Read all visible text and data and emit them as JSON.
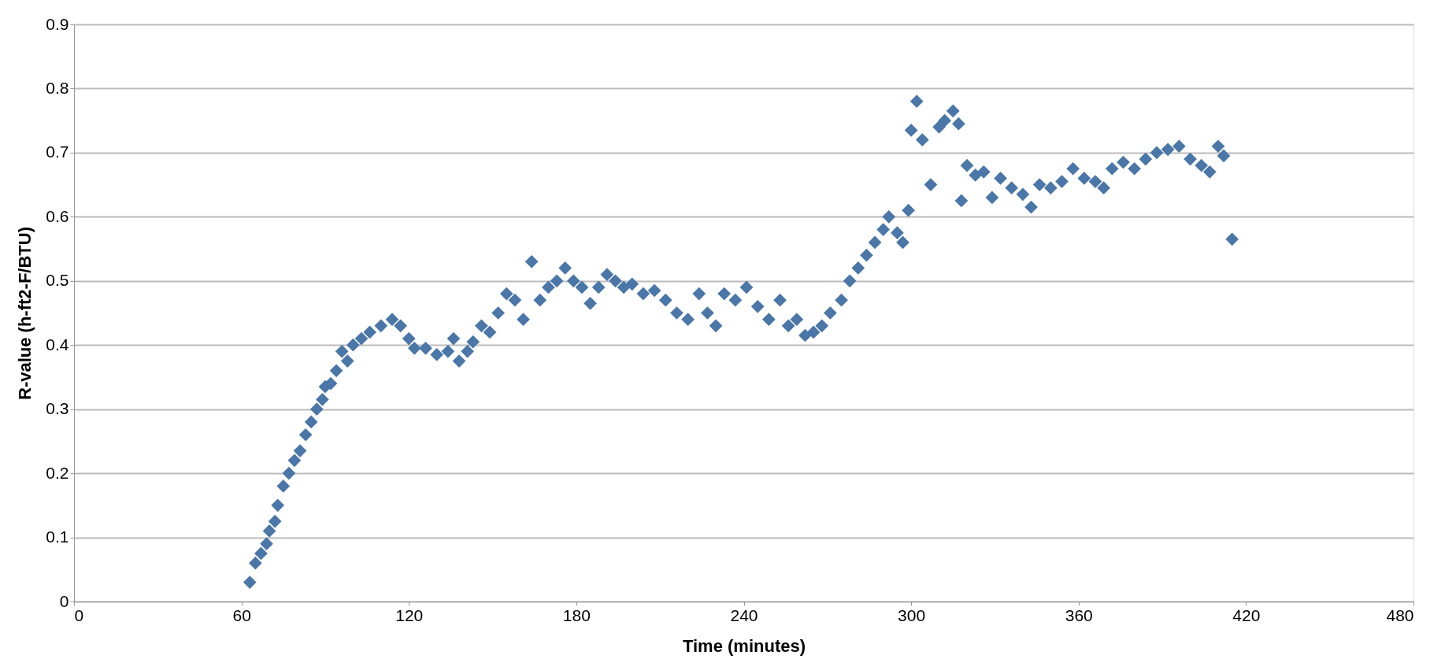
{
  "chart_data": {
    "type": "scatter",
    "xlabel": "Time (minutes)",
    "ylabel": "R-value (h-ft2-F/BTU)",
    "xlim": [
      0,
      480
    ],
    "xticks": [
      0,
      60,
      120,
      180,
      240,
      300,
      360,
      420,
      480
    ],
    "ylim": [
      0,
      0.9
    ],
    "yticks": [
      0,
      0.1,
      0.2,
      0.3,
      0.4,
      0.5,
      0.6,
      0.7,
      0.8,
      0.9
    ],
    "grid": "y",
    "marker": "diamond",
    "legend": false,
    "series": [
      {
        "color": "#4a76a8",
        "x": [
          63,
          65,
          67,
          69,
          70,
          72,
          73,
          75,
          77,
          79,
          81,
          83,
          85,
          87,
          89,
          90,
          92,
          94,
          96,
          98,
          100,
          103,
          106,
          110,
          114,
          117,
          120,
          122,
          126,
          130,
          134,
          136,
          138,
          141,
          143,
          146,
          149,
          152,
          155,
          158,
          161,
          164,
          167,
          170,
          173,
          176,
          179,
          182,
          185,
          188,
          191,
          194,
          197,
          200,
          204,
          208,
          212,
          216,
          220,
          224,
          227,
          230,
          233,
          237,
          241,
          245,
          249,
          253,
          256,
          259,
          262,
          265,
          268,
          271,
          275,
          278,
          281,
          284,
          287,
          290,
          292,
          295,
          297,
          299,
          300,
          302,
          304,
          307,
          310,
          312,
          315,
          317,
          318,
          320,
          323,
          326,
          329,
          332,
          336,
          340,
          343,
          346,
          350,
          354,
          358,
          362,
          366,
          369,
          372,
          376,
          380,
          384,
          388,
          392,
          396,
          400,
          404,
          407,
          410,
          412,
          415
        ],
        "values": [
          0.03,
          0.06,
          0.075,
          0.09,
          0.11,
          0.125,
          0.15,
          0.18,
          0.2,
          0.22,
          0.235,
          0.26,
          0.28,
          0.3,
          0.315,
          0.335,
          0.34,
          0.36,
          0.39,
          0.375,
          0.4,
          0.41,
          0.42,
          0.43,
          0.44,
          0.43,
          0.41,
          0.395,
          0.395,
          0.385,
          0.39,
          0.41,
          0.375,
          0.39,
          0.405,
          0.43,
          0.42,
          0.45,
          0.48,
          0.47,
          0.44,
          0.53,
          0.47,
          0.49,
          0.5,
          0.52,
          0.5,
          0.49,
          0.465,
          0.49,
          0.51,
          0.5,
          0.49,
          0.495,
          0.48,
          0.485,
          0.47,
          0.45,
          0.44,
          0.48,
          0.45,
          0.43,
          0.48,
          0.47,
          0.49,
          0.46,
          0.44,
          0.47,
          0.43,
          0.44,
          0.415,
          0.42,
          0.43,
          0.45,
          0.47,
          0.5,
          0.52,
          0.54,
          0.56,
          0.58,
          0.6,
          0.575,
          0.56,
          0.61,
          0.735,
          0.78,
          0.72,
          0.65,
          0.74,
          0.75,
          0.765,
          0.745,
          0.625,
          0.68,
          0.665,
          0.67,
          0.63,
          0.66,
          0.645,
          0.635,
          0.615,
          0.65,
          0.645,
          0.655,
          0.675,
          0.66,
          0.655,
          0.645,
          0.675,
          0.685,
          0.675,
          0.69,
          0.7,
          0.705,
          0.71,
          0.69,
          0.68,
          0.67,
          0.71,
          0.695,
          0.565
        ]
      }
    ]
  }
}
